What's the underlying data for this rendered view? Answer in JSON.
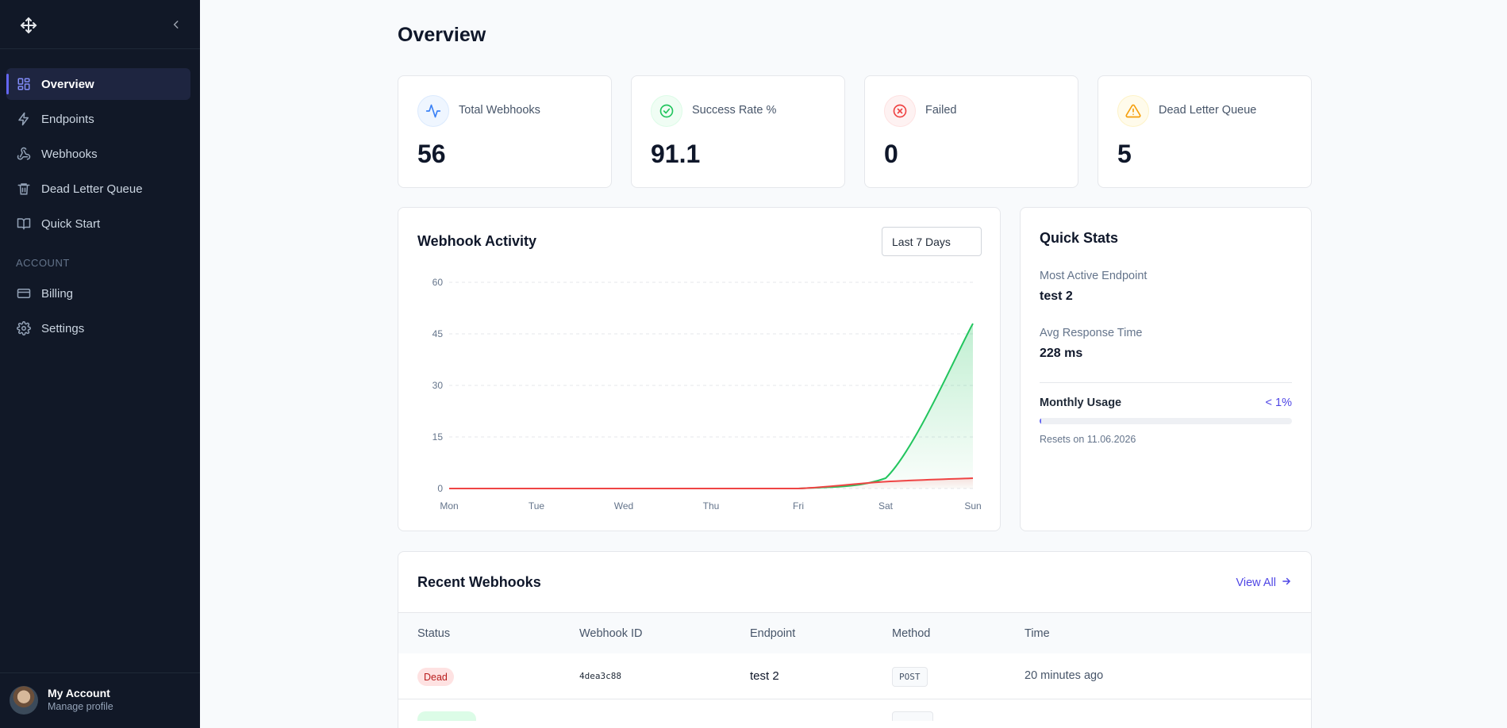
{
  "sidebar": {
    "items": [
      {
        "label": "Overview",
        "icon": "grid-icon",
        "active": true
      },
      {
        "label": "Endpoints",
        "icon": "lightning-icon"
      },
      {
        "label": "Webhooks",
        "icon": "webhook-icon"
      },
      {
        "label": "Dead Letter Queue",
        "icon": "trash-icon"
      },
      {
        "label": "Quick Start",
        "icon": "book-icon"
      }
    ],
    "account_section": "ACCOUNT",
    "account_items": [
      {
        "label": "Billing",
        "icon": "credit-card-icon"
      },
      {
        "label": "Settings",
        "icon": "gear-icon"
      }
    ],
    "profile": {
      "name": "My Account",
      "subtitle": "Manage profile"
    }
  },
  "page": {
    "title": "Overview"
  },
  "stats": [
    {
      "label": "Total Webhooks",
      "value": "56",
      "icon": "activity-icon",
      "color": "#3b82f6"
    },
    {
      "label": "Success Rate %",
      "value": "91.1",
      "icon": "check-circle-icon",
      "color": "#22c55e"
    },
    {
      "label": "Failed",
      "value": "0",
      "icon": "x-circle-icon",
      "color": "#ef4444"
    },
    {
      "label": "Dead Letter Queue",
      "value": "5",
      "icon": "alert-triangle-icon",
      "color": "#f59e0b"
    }
  ],
  "activity": {
    "title": "Webhook Activity",
    "range": "Last 7 Days"
  },
  "chart_data": {
    "type": "area",
    "categories": [
      "Mon",
      "Tue",
      "Wed",
      "Thu",
      "Fri",
      "Sat",
      "Sun"
    ],
    "series": [
      {
        "values": [
          0,
          0,
          0,
          0,
          0,
          3,
          48
        ],
        "color": "#22c55e"
      },
      {
        "values": [
          0,
          0,
          0,
          0,
          0,
          2,
          3
        ],
        "color": "#ef4444"
      }
    ],
    "yticks": [
      "0",
      "15",
      "30",
      "45",
      "60"
    ],
    "ylim": [
      0,
      60
    ],
    "grid": true
  },
  "quick_stats": {
    "title": "Quick Stats",
    "most_active_label": "Most Active Endpoint",
    "most_active_value": "test 2",
    "avg_response_label": "Avg Response Time",
    "avg_response_value": "228 ms",
    "usage_label": "Monthly Usage",
    "usage_value": "< 1%",
    "usage_fraction": 0.005,
    "resets": "Resets on 11.06.2026"
  },
  "recent": {
    "title": "Recent Webhooks",
    "view_all": "View All",
    "columns": [
      "Status",
      "Webhook ID",
      "Endpoint",
      "Method",
      "Time"
    ],
    "rows": [
      {
        "status": "Dead",
        "id": "4dea3c88",
        "endpoint": "test 2",
        "method": "POST",
        "time": "20 minutes ago"
      }
    ]
  }
}
